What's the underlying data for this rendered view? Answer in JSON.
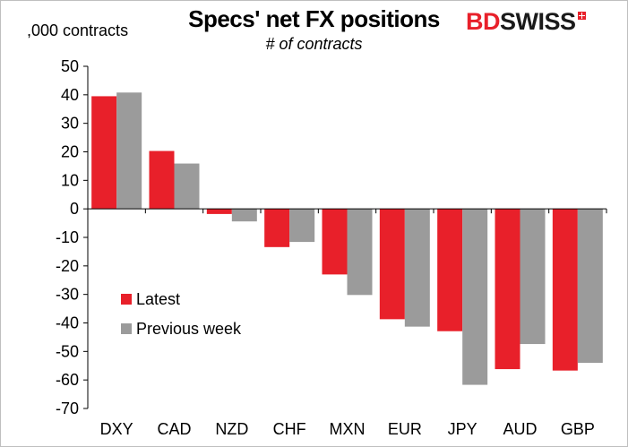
{
  "logo": {
    "part1": "BD",
    "part2": "SWISS"
  },
  "colors": {
    "latest": "#e8202a",
    "previous": "#9b9b9b"
  },
  "chart_data": {
    "type": "bar",
    "title": "Specs' net FX positions",
    "subtitle": "# of contracts",
    "ylabel": ",000 contracts",
    "xlabel": "",
    "ylim": [
      -70,
      50
    ],
    "yticks": [
      50,
      40,
      30,
      20,
      10,
      0,
      -10,
      -20,
      -30,
      -40,
      -50,
      -60,
      -70
    ],
    "grid": false,
    "legend_position": "lower-left",
    "categories": [
      "DXY",
      "CAD",
      "NZD",
      "CHF",
      "MXN",
      "EUR",
      "JPY",
      "AUD",
      "GBP"
    ],
    "series": [
      {
        "name": "Latest",
        "color": "#e8202a",
        "values": [
          39.5,
          20.3,
          -1.8,
          -13.4,
          -23.0,
          -38.7,
          -42.9,
          -56.2,
          -56.7
        ]
      },
      {
        "name": "Previous week",
        "color": "#9b9b9b",
        "values": [
          40.8,
          15.9,
          -4.4,
          -11.6,
          -30.2,
          -41.3,
          -61.7,
          -47.4,
          -54.0
        ]
      }
    ]
  }
}
